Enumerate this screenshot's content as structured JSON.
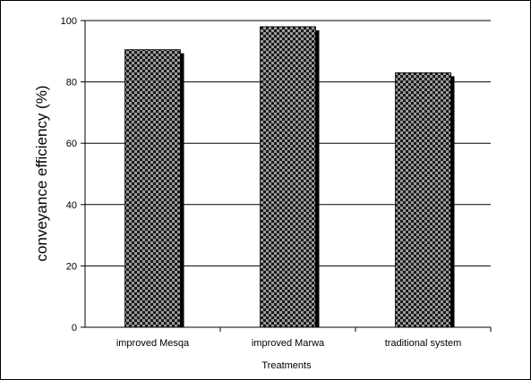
{
  "chart_data": {
    "type": "bar",
    "categories": [
      "improved Mesqa",
      "improved Marwa",
      "traditional system"
    ],
    "values": [
      90.5,
      98,
      83
    ],
    "xlabel": "Treatments",
    "ylabel": "conveyance efficiency (%)",
    "ylim": [
      0,
      100
    ],
    "yticks": [
      0,
      20,
      40,
      60,
      80,
      100
    ],
    "grid": true,
    "legend": "none",
    "colors": {
      "bar_dark": "#1a1a1a",
      "bar_light": "#9a9a9a",
      "bar_shadow": "#000000",
      "gridline": "#000000",
      "axis": "#000000",
      "frame": "#000000"
    }
  }
}
